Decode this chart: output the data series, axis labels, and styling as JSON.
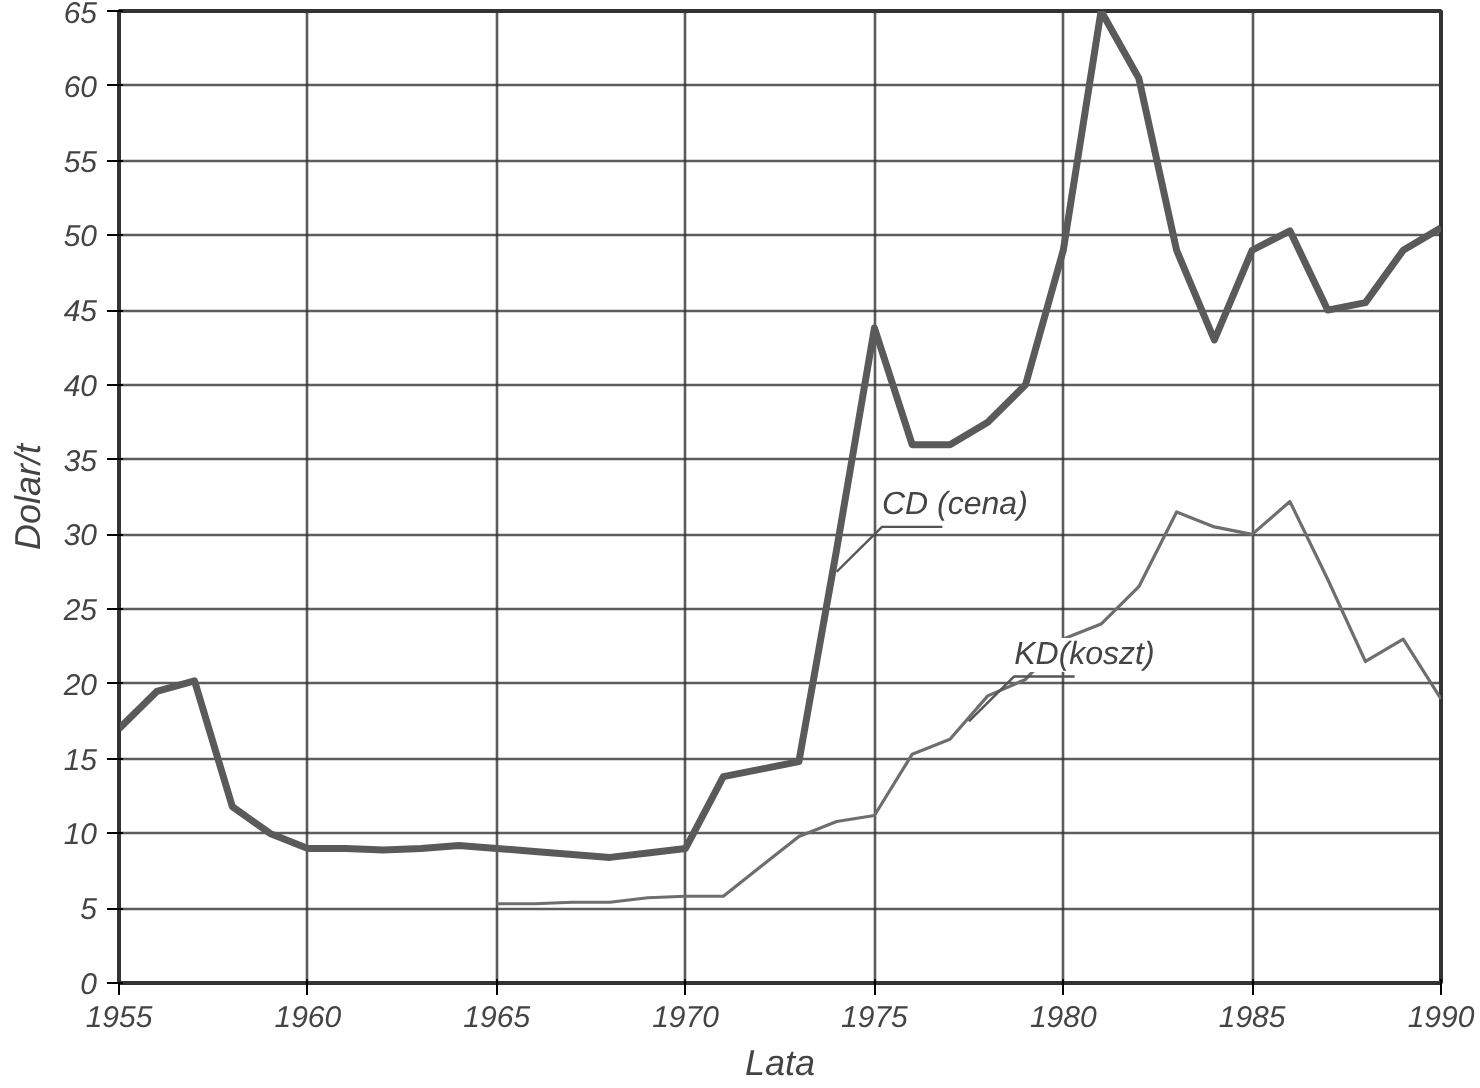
{
  "chart_data": {
    "type": "line",
    "xlabel": "Lata",
    "ylabel": "Dolar/t",
    "xlim": [
      1955,
      1990
    ],
    "xticks": [
      1955,
      1960,
      1965,
      1970,
      1975,
      1980,
      1985,
      1990
    ],
    "ylim": [
      0,
      65
    ],
    "yticks": [
      0,
      5,
      10,
      15,
      20,
      25,
      30,
      35,
      40,
      45,
      50,
      55,
      60,
      65
    ],
    "grid": true,
    "marker": "none",
    "line_style": "solid",
    "series": [
      {
        "color": "#5a5a5a",
        "x": [
          1955,
          1956,
          1957,
          1958,
          1959,
          1960,
          1961,
          1962,
          1963,
          1964,
          1965,
          1966,
          1967,
          1968,
          1969,
          1970,
          1971,
          1972,
          1973,
          1974,
          1975,
          1976,
          1977,
          1978,
          1979,
          1980,
          1981,
          1982,
          1983,
          1984,
          1985,
          1986,
          1987,
          1988,
          1989,
          1990
        ],
        "values": [
          17,
          19.5,
          20.2,
          11.8,
          10,
          9,
          9,
          8.9,
          9,
          9.2,
          9,
          8.8,
          8.6,
          8.4,
          8.7,
          9,
          13.8,
          14.3,
          14.8,
          29,
          43.8,
          36,
          36,
          37.5,
          40,
          49,
          65,
          60.5,
          49,
          43,
          49,
          50.3,
          45,
          45.5,
          49,
          50.5
        ]
      },
      {
        "color": "#6e6e6e",
        "x": [
          1965,
          1966,
          1967,
          1968,
          1969,
          1970,
          1971,
          1972,
          1973,
          1974,
          1975,
          1976,
          1977,
          1978,
          1979,
          1980,
          1981,
          1982,
          1983,
          1984,
          1985,
          1986,
          1987,
          1988,
          1989,
          1990
        ],
        "values": [
          5.3,
          5.3,
          5.4,
          5.4,
          5.7,
          5.8,
          5.8,
          7.8,
          9.8,
          10.8,
          11.2,
          15.3,
          16.3,
          19.2,
          20.3,
          23,
          24,
          26.5,
          31.5,
          30.5,
          30,
          32.2,
          27,
          21.5,
          23,
          19
        ]
      }
    ],
    "annotations": [
      {
        "text": "CD (cena)",
        "x": 1974,
        "y": 27.5
      },
      {
        "text": "KD(koszt)",
        "x": 1977.5,
        "y": 17.5
      }
    ]
  }
}
